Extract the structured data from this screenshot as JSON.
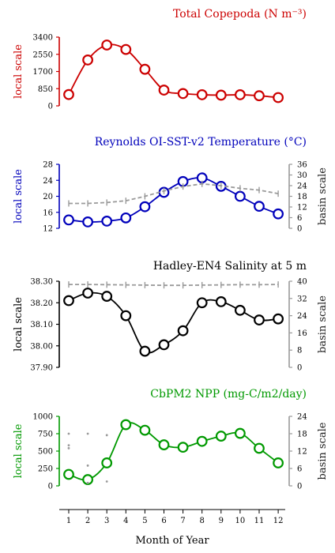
{
  "chart_data": [
    {
      "id": "copepoda",
      "type": "line",
      "title": "Total Copepoda (N m⁻³)",
      "color": "#cc0000",
      "left_label": "local scale",
      "left_ticks": [
        "3400",
        "2550",
        "1700",
        "850",
        "0"
      ],
      "left_range": [
        0,
        3400
      ],
      "x": [
        1,
        2,
        3,
        4,
        5,
        6,
        7,
        8,
        9,
        10,
        11,
        12
      ],
      "series": [
        {
          "values": [
            560,
            2270,
            3010,
            2790,
            1810,
            780,
            610,
            550,
            530,
            550,
            500,
            410
          ]
        }
      ]
    },
    {
      "id": "sst",
      "type": "line",
      "title": "Reynolds OI-SST-v2 Temperature (°C)",
      "color": "#0000bb",
      "left_label": "local scale",
      "right_label": "basin scale",
      "left_ticks": [
        "28",
        "24",
        "20",
        "16",
        "12"
      ],
      "left_range": [
        12,
        28
      ],
      "right_ticks": [
        "36",
        "30",
        "24",
        "18",
        "12",
        "6",
        "0"
      ],
      "right_range": [
        0,
        36
      ],
      "x": [
        1,
        2,
        3,
        4,
        5,
        6,
        7,
        8,
        9,
        10,
        11,
        12
      ],
      "series": [
        {
          "values": [
            14.1,
            13.6,
            13.8,
            14.6,
            17.4,
            21.0,
            23.7,
            24.6,
            22.5,
            20.0,
            17.5,
            15.6
          ]
        },
        {
          "values": [
            14,
            14,
            14.5,
            15.5,
            18,
            21,
            23.5,
            25,
            24,
            22.5,
            21.5,
            19.5
          ],
          "axis": "right",
          "style": "dashed"
        }
      ]
    },
    {
      "id": "salinity",
      "type": "line",
      "title": "Hadley-EN4 Salinity at 5 m",
      "color": "#000000",
      "left_label": "local scale",
      "right_label": "basin scale",
      "left_ticks": [
        "38.30",
        "38.20",
        "38.10",
        "38.00",
        "37.90"
      ],
      "left_range": [
        37.9,
        38.3
      ],
      "right_ticks": [
        "40",
        "32",
        "24",
        "16",
        "8",
        "0"
      ],
      "right_range": [
        0,
        40
      ],
      "x": [
        1,
        2,
        3,
        4,
        5,
        6,
        7,
        8,
        9,
        10,
        11,
        12
      ],
      "series": [
        {
          "values": [
            38.21,
            38.245,
            38.23,
            38.14,
            37.975,
            38.005,
            38.07,
            38.2,
            38.205,
            38.165,
            38.12,
            38.125
          ]
        },
        {
          "values": [
            38.5,
            38.5,
            38.4,
            38.3,
            38.2,
            38.1,
            38.1,
            38.2,
            38.3,
            38.4,
            38.4,
            38.5
          ],
          "axis": "right",
          "style": "dashed"
        }
      ]
    },
    {
      "id": "npp",
      "type": "line",
      "title": "CbPM2 NPP (mg-C/m2/day)",
      "color": "#009900",
      "left_label": "local scale",
      "right_label": "basin scale",
      "left_ticks": [
        "1000",
        "750",
        "500",
        "250",
        "0"
      ],
      "left_range": [
        0,
        1000
      ],
      "right_ticks": [
        "24",
        "18",
        "12",
        "6",
        "0"
      ],
      "right_range": [
        0,
        24
      ],
      "x": [
        1,
        2,
        3,
        4,
        5,
        6,
        7,
        8,
        9,
        10,
        11,
        12
      ],
      "series": [
        {
          "values": [
            165,
            90,
            330,
            880,
            800,
            590,
            555,
            640,
            715,
            755,
            540,
            330
          ]
        },
        {
          "type": "scatter",
          "axis": "right",
          "points": [
            [
              1,
              18
            ],
            [
              1,
              14
            ],
            [
              1,
              13
            ],
            [
              2,
              18
            ],
            [
              2,
              7
            ],
            [
              2,
              1
            ],
            [
              3,
              17.5
            ],
            [
              3,
              1.5
            ]
          ]
        }
      ]
    }
  ],
  "x_ticks": [
    "1",
    "2",
    "3",
    "4",
    "5",
    "6",
    "7",
    "8",
    "9",
    "10",
    "11",
    "12"
  ],
  "x_label": "Month of Year"
}
